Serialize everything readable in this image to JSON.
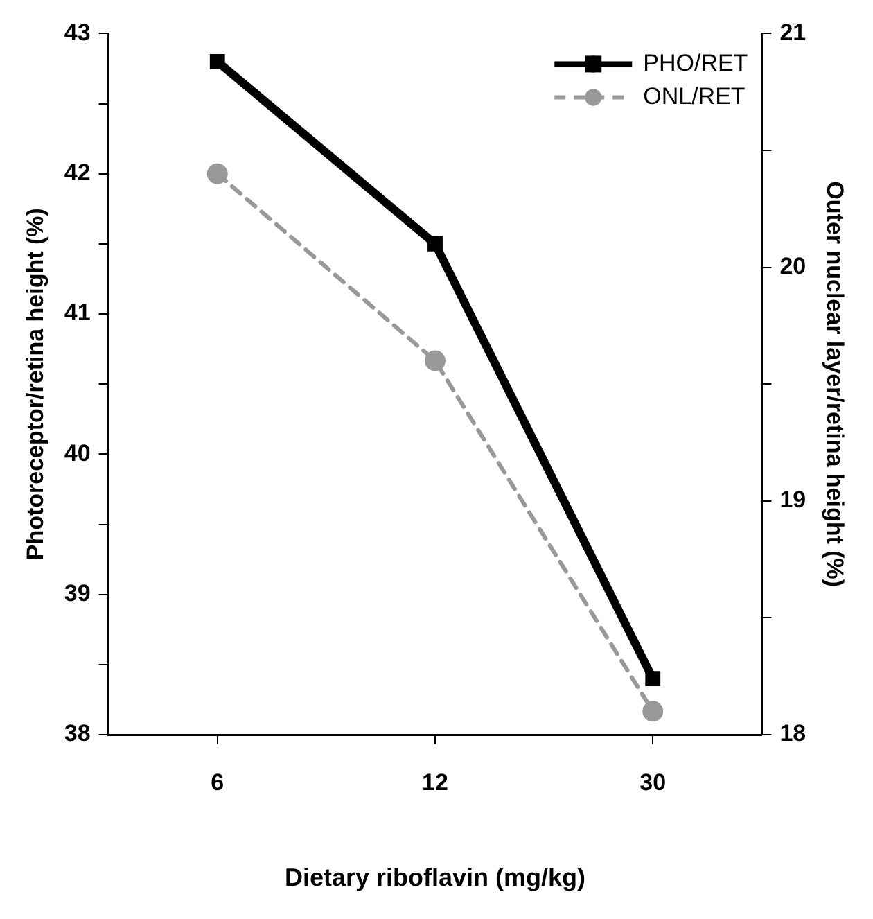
{
  "chart_data": {
    "type": "line",
    "xlabel": "Dietary riboflavin (mg/kg)",
    "ylabel": "Photoreceptor/retina height (%)",
    "y2label": "Outer nuclear layer/retina height (%)",
    "categories": [
      "6",
      "12",
      "30"
    ],
    "series": [
      {
        "name": "PHO/RET",
        "color": "#000000",
        "values": [
          42.8,
          41.5,
          38.4
        ],
        "marker": "square",
        "line_style": "solid"
      },
      {
        "name": "ONL/RET",
        "color": "#999999",
        "values": [
          20.4,
          19.6,
          18.1
        ],
        "axis": "y2",
        "marker": "circle",
        "line_style": "dashed"
      }
    ],
    "ylim": [
      38,
      43
    ],
    "yticks": [
      38,
      {
        "value": 38.5,
        "label": null
      },
      39,
      {
        "value": 39.5,
        "label": null
      },
      40,
      {
        "value": 40.5,
        "label": null
      },
      41,
      {
        "value": 41.5,
        "label": null
      },
      42,
      {
        "value": 42.5,
        "label": null
      },
      43
    ],
    "y2lim": [
      18,
      21
    ],
    "y2ticks": [
      18,
      {
        "value": 18.5,
        "label": null
      },
      19,
      {
        "value": 19.5,
        "label": null
      },
      20,
      {
        "value": 20.5,
        "label": null
      },
      21
    ],
    "grid": false,
    "legend": "top right"
  }
}
